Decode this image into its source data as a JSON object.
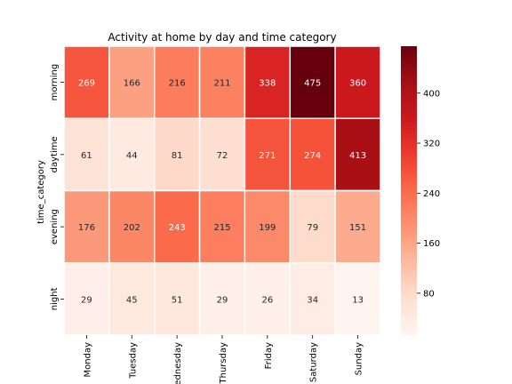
{
  "chart_data": {
    "type": "heatmap",
    "title": "Activity at home by day and time category",
    "xlabel": "",
    "ylabel": "time_category",
    "x_categories": [
      "Monday",
      "Tuesday",
      "Wednesday",
      "Thursday",
      "Friday",
      "Saturday",
      "Sunday"
    ],
    "y_categories": [
      "morning",
      "daytime",
      "evening",
      "night"
    ],
    "values": [
      [
        269,
        166,
        216,
        211,
        338,
        475,
        360
      ],
      [
        61,
        44,
        81,
        72,
        271,
        274,
        413
      ],
      [
        176,
        202,
        243,
        215,
        199,
        79,
        151
      ],
      [
        29,
        45,
        51,
        29,
        26,
        34,
        13
      ]
    ],
    "colorbar": {
      "min": 13,
      "max": 475,
      "ticks": [
        80,
        160,
        240,
        320,
        400
      ]
    },
    "colormap": "Reds",
    "cell_border_color": "#ffffff"
  }
}
